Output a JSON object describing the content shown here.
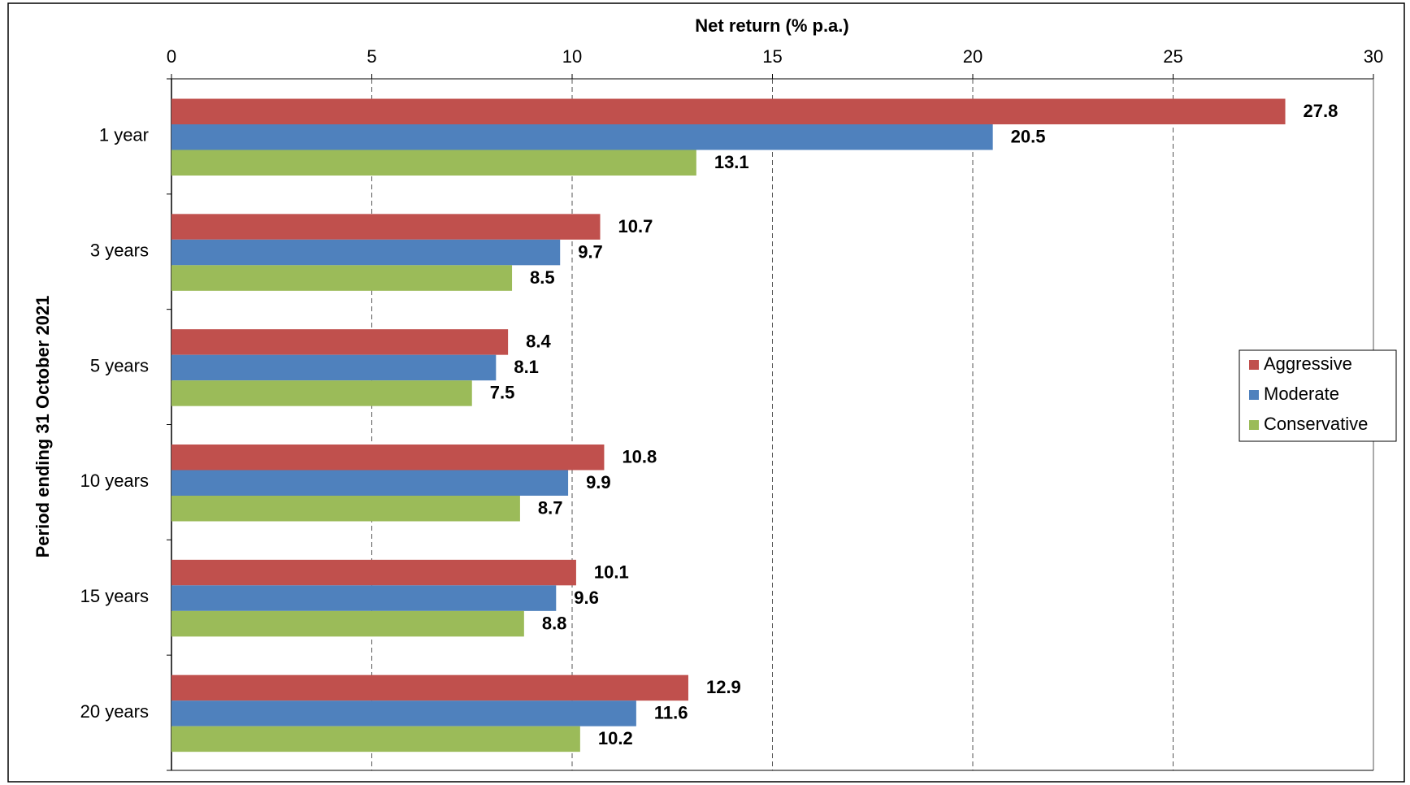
{
  "chart_data": {
    "type": "bar",
    "orientation": "horizontal",
    "title": "Net return (% p.a.)",
    "y_label": "Period ending 31 October 2021",
    "categories": [
      "1 year",
      "3 years",
      "5 years",
      "10 years",
      "15 years",
      "20 years"
    ],
    "series": [
      {
        "name": "Aggressive",
        "color": "#c0504d",
        "values": [
          27.8,
          10.7,
          8.4,
          10.8,
          10.1,
          12.9
        ]
      },
      {
        "name": "Moderate",
        "color": "#4f81bd",
        "values": [
          20.5,
          9.7,
          8.1,
          9.9,
          9.6,
          11.6
        ]
      },
      {
        "name": "Conservative",
        "color": "#9bbb59",
        "values": [
          13.1,
          8.5,
          7.5,
          8.7,
          8.8,
          10.2
        ]
      }
    ],
    "xlim": [
      0,
      30
    ],
    "xticks": [
      0,
      5,
      10,
      15,
      20,
      25,
      30
    ],
    "grid": true,
    "legend": "right"
  }
}
